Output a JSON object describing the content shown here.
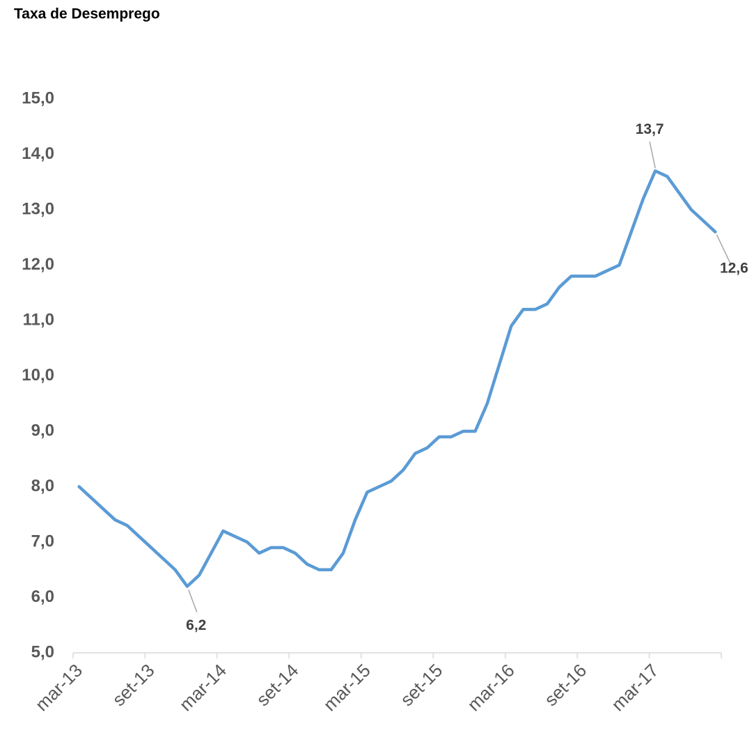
{
  "chart_data": {
    "type": "line",
    "title": "Taxa de Desemprego",
    "categories": [
      "mar-13",
      null,
      null,
      null,
      null,
      null,
      "set-13",
      null,
      null,
      null,
      null,
      null,
      "mar-14",
      null,
      null,
      null,
      null,
      null,
      "set-14",
      null,
      null,
      null,
      null,
      null,
      "mar-15",
      null,
      null,
      null,
      null,
      null,
      "set-15",
      null,
      null,
      null,
      null,
      null,
      "mar-16",
      null,
      null,
      null,
      null,
      null,
      "set-16",
      null,
      null,
      null,
      null,
      null,
      "mar-17",
      null,
      null,
      null,
      null,
      null
    ],
    "values": [
      8.0,
      7.8,
      7.6,
      7.4,
      7.3,
      7.1,
      6.9,
      6.7,
      6.5,
      6.2,
      6.4,
      6.8,
      7.2,
      7.1,
      7.0,
      6.8,
      6.9,
      6.9,
      6.8,
      6.6,
      6.5,
      6.5,
      6.8,
      7.4,
      7.9,
      8.0,
      8.1,
      8.3,
      8.6,
      8.7,
      8.9,
      8.9,
      9.0,
      9.0,
      9.5,
      10.2,
      10.9,
      11.2,
      11.2,
      11.3,
      11.6,
      11.8,
      11.8,
      11.8,
      11.9,
      12.0,
      12.6,
      13.2,
      13.7,
      13.6,
      13.3,
      13.0,
      12.8,
      12.6
    ],
    "value_labels": [
      null,
      null,
      null,
      null,
      null,
      null,
      null,
      null,
      null,
      "6,2",
      null,
      null,
      null,
      null,
      null,
      null,
      null,
      null,
      null,
      null,
      null,
      null,
      null,
      null,
      null,
      null,
      null,
      null,
      null,
      null,
      null,
      null,
      null,
      null,
      null,
      null,
      null,
      null,
      null,
      null,
      null,
      null,
      null,
      null,
      null,
      null,
      null,
      null,
      "13,7",
      null,
      null,
      null,
      null,
      "12,6"
    ],
    "color": "#5b9bd5",
    "ylim": [
      5,
      15
    ],
    "yticks": [
      {
        "value": 5,
        "label": "5,0"
      },
      {
        "value": 6,
        "label": "6,0"
      },
      {
        "value": 7,
        "label": "7,0"
      },
      {
        "value": 8,
        "label": "8,0"
      },
      {
        "value": 9,
        "label": "9,0"
      },
      {
        "value": 10,
        "label": "10,0"
      },
      {
        "value": 11,
        "label": "11,0"
      },
      {
        "value": 12,
        "label": "12,0"
      },
      {
        "value": 13,
        "label": "13,0"
      },
      {
        "value": 14,
        "label": "14,0"
      },
      {
        "value": 15,
        "label": "15,0"
      }
    ],
    "grid": false
  }
}
